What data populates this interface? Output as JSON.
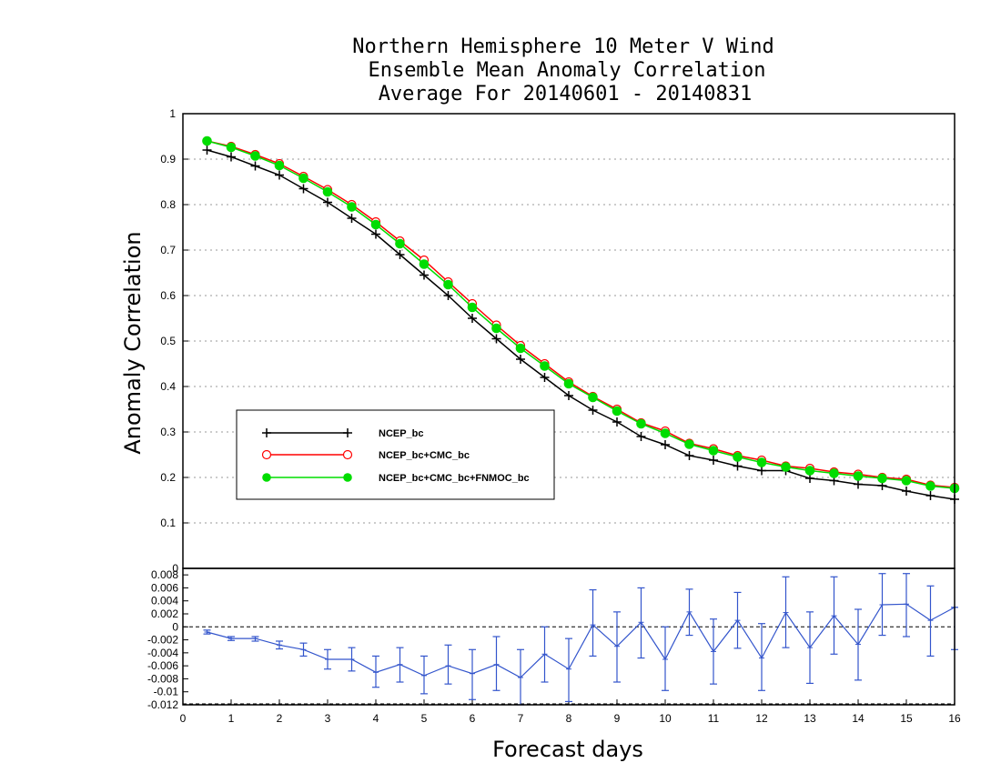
{
  "title": {
    "line1": "Northern Hemisphere 10 Meter V Wind",
    "line2": "Ensemble Mean Anomaly Correlation",
    "line3": "Average For 20140601 - 20140831"
  },
  "chart_data": [
    {
      "type": "line",
      "ylabel": "Anomaly Correlation",
      "xlabel": "Forecast days",
      "xlim": [
        0,
        16
      ],
      "ylim": [
        0,
        1
      ],
      "yticks": [
        "0",
        "0.1",
        "0.2",
        "0.3",
        "0.4",
        "0.5",
        "0.6",
        "0.7",
        "0.8",
        "0.9",
        "1"
      ],
      "grid": "horizontal dotted",
      "legend_position": "lower-left",
      "x": [
        0.5,
        1,
        1.5,
        2,
        2.5,
        3,
        3.5,
        4,
        4.5,
        5,
        5.5,
        6,
        6.5,
        7,
        7.5,
        8,
        8.5,
        9,
        9.5,
        10,
        10.5,
        11,
        11.5,
        12,
        12.5,
        13,
        13.5,
        14,
        14.5,
        15,
        15.5,
        16
      ],
      "series": [
        {
          "name": "NCEP_bc",
          "color": "#000000",
          "marker": "plus",
          "values": [
            0.92,
            0.905,
            0.885,
            0.865,
            0.835,
            0.805,
            0.77,
            0.735,
            0.69,
            0.645,
            0.6,
            0.55,
            0.505,
            0.46,
            0.42,
            0.38,
            0.348,
            0.322,
            0.29,
            0.272,
            0.248,
            0.238,
            0.225,
            0.215,
            0.215,
            0.198,
            0.193,
            0.185,
            0.182,
            0.17,
            0.16,
            0.152
          ]
        },
        {
          "name": "NCEP_bc+CMC_bc",
          "color": "#ff0000",
          "marker": "open-circle",
          "values": [
            0.94,
            0.928,
            0.91,
            0.89,
            0.862,
            0.833,
            0.8,
            0.762,
            0.72,
            0.678,
            0.63,
            0.582,
            0.535,
            0.49,
            0.45,
            0.41,
            0.378,
            0.35,
            0.32,
            0.302,
            0.275,
            0.263,
            0.248,
            0.238,
            0.225,
            0.22,
            0.212,
            0.207,
            0.2,
            0.196,
            0.183,
            0.178
          ]
        },
        {
          "name": "NCEP_bc+CMC_bc+FNMOC_bc",
          "color": "#00dd00",
          "marker": "filled-circle",
          "values": [
            0.94,
            0.926,
            0.907,
            0.886,
            0.858,
            0.828,
            0.795,
            0.756,
            0.714,
            0.669,
            0.624,
            0.574,
            0.528,
            0.484,
            0.445,
            0.406,
            0.376,
            0.346,
            0.318,
            0.297,
            0.273,
            0.259,
            0.245,
            0.233,
            0.223,
            0.215,
            0.209,
            0.203,
            0.198,
            0.193,
            0.181,
            0.176
          ]
        }
      ]
    },
    {
      "type": "line",
      "subtype": "error-bars",
      "xlabel": "Forecast days",
      "xlim": [
        0,
        16
      ],
      "ylim": [
        -0.012,
        0.009
      ],
      "xticks": [
        "0",
        "1",
        "2",
        "3",
        "4",
        "5",
        "6",
        "7",
        "8",
        "9",
        "10",
        "11",
        "12",
        "13",
        "14",
        "15",
        "16"
      ],
      "yticks": [
        "-0.012",
        "-0.01",
        "-0.008",
        "-0.006",
        "-0.004",
        "-0.002",
        "0",
        "0.002",
        "0.004",
        "0.006",
        "0.008"
      ],
      "top_label": "0",
      "zero_line": "dashed",
      "color": "#3355cc",
      "x": [
        0.5,
        1,
        1.5,
        2,
        2.5,
        3,
        3.5,
        4,
        4.5,
        5,
        5.5,
        6,
        6.5,
        7,
        7.5,
        8,
        8.5,
        9,
        9.5,
        10,
        10.5,
        11,
        11.5,
        12,
        12.5,
        13,
        13.5,
        14,
        14.5,
        15,
        15.5,
        16
      ],
      "values": [
        -0.0008,
        -0.0018,
        -0.0018,
        -0.0028,
        -0.0035,
        -0.005,
        -0.005,
        -0.007,
        -0.0058,
        -0.0075,
        -0.006,
        -0.0072,
        -0.0058,
        -0.0078,
        -0.0042,
        -0.0065,
        0.0003,
        -0.003,
        0.0007,
        -0.005,
        0.0023,
        -0.0038,
        0.001,
        -0.0048,
        0.0022,
        -0.0032,
        0.0017,
        -0.0027,
        0.0034,
        0.0035,
        0.001,
        0.003
      ],
      "error_low": [
        -0.0011,
        -0.0021,
        -0.0022,
        -0.0034,
        -0.0045,
        -0.0065,
        -0.0068,
        -0.0093,
        -0.0085,
        -0.0103,
        -0.0088,
        -0.0112,
        -0.0098,
        -0.012,
        -0.0085,
        -0.0115,
        -0.0045,
        -0.0085,
        -0.0048,
        -0.0098,
        -0.0013,
        -0.0088,
        -0.0033,
        -0.0098,
        -0.0032,
        -0.0087,
        -0.0042,
        -0.0082,
        -0.0013,
        -0.0015,
        -0.0045,
        -0.0035
      ],
      "error_high": [
        -0.0005,
        -0.0015,
        -0.0015,
        -0.0022,
        -0.0025,
        -0.0035,
        -0.0032,
        -0.0045,
        -0.0032,
        -0.0045,
        -0.0028,
        -0.0035,
        -0.0015,
        -0.0035,
        0.0,
        -0.0018,
        0.0057,
        0.0023,
        0.006,
        0.0,
        0.0058,
        0.0012,
        0.0053,
        0.0005,
        0.0077,
        0.0023,
        0.0077,
        0.0027,
        0.0082,
        0.0082,
        0.0063,
        0.003
      ]
    }
  ]
}
